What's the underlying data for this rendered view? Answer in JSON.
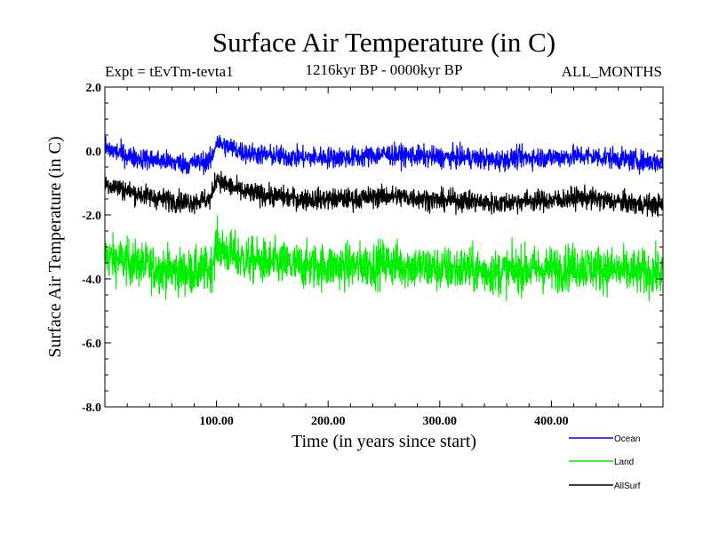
{
  "chart_data": {
    "type": "line",
    "title": "Surface Air Temperature (in C)",
    "experiment_label": "Expt = tEvTm-tevta1",
    "period_label": "1216kyr BP - 0000kyr BP",
    "months_label": "ALL_MONTHS",
    "xlabel": "Time (in years since start)",
    "ylabel": "Surface Air Temperature (in C)",
    "xlim": [
      0,
      500
    ],
    "ylim": [
      -8.0,
      2.0
    ],
    "x_ticks": [
      {
        "value": 100,
        "label": "100.00"
      },
      {
        "value": 200,
        "label": "200.00"
      },
      {
        "value": 300,
        "label": "300.00"
      },
      {
        "value": 400,
        "label": "400.00"
      }
    ],
    "y_ticks": [
      {
        "value": 2.0,
        "label": "2.0"
      },
      {
        "value": 0.0,
        "label": "0.0"
      },
      {
        "value": -2.0,
        "label": "-2.0"
      },
      {
        "value": -4.0,
        "label": "-4.0"
      },
      {
        "value": -6.0,
        "label": "-6.0"
      },
      {
        "value": -8.0,
        "label": "-8.0"
      }
    ],
    "legend_position": "bottom-right, outside plot",
    "grid": false,
    "series": [
      {
        "name": "Ocean",
        "color": "#0000ff",
        "x": [
          0,
          25,
          50,
          75,
          95,
          100,
          105,
          125,
          150,
          175,
          200,
          225,
          250,
          275,
          300,
          325,
          350,
          375,
          400,
          425,
          450,
          475,
          500
        ],
        "values": [
          0.1,
          -0.2,
          -0.3,
          -0.4,
          -0.3,
          0.3,
          0.2,
          -0.05,
          -0.15,
          -0.2,
          -0.2,
          -0.2,
          -0.1,
          -0.15,
          -0.2,
          -0.2,
          -0.3,
          -0.2,
          -0.2,
          -0.15,
          -0.2,
          -0.3,
          -0.35
        ],
        "noise_amplitude": 0.3
      },
      {
        "name": "Land",
        "color": "#00ee00",
        "x": [
          0,
          25,
          50,
          75,
          95,
          100,
          105,
          125,
          150,
          175,
          200,
          225,
          250,
          275,
          300,
          325,
          350,
          375,
          400,
          425,
          450,
          475,
          500
        ],
        "values": [
          -3.3,
          -3.5,
          -3.7,
          -3.8,
          -3.7,
          -2.9,
          -3.1,
          -3.4,
          -3.5,
          -3.6,
          -3.6,
          -3.6,
          -3.5,
          -3.6,
          -3.7,
          -3.7,
          -3.8,
          -3.7,
          -3.7,
          -3.6,
          -3.7,
          -3.8,
          -3.8
        ],
        "noise_amplitude": 0.65
      },
      {
        "name": "AllSurf",
        "color": "#000000",
        "x": [
          0,
          25,
          50,
          75,
          95,
          100,
          105,
          125,
          150,
          175,
          200,
          225,
          250,
          275,
          300,
          325,
          350,
          375,
          400,
          425,
          450,
          475,
          500
        ],
        "values": [
          -1.0,
          -1.3,
          -1.5,
          -1.6,
          -1.5,
          -0.8,
          -1.0,
          -1.3,
          -1.4,
          -1.5,
          -1.5,
          -1.5,
          -1.4,
          -1.45,
          -1.55,
          -1.55,
          -1.65,
          -1.55,
          -1.55,
          -1.45,
          -1.55,
          -1.65,
          -1.7
        ],
        "noise_amplitude": 0.3
      }
    ]
  }
}
